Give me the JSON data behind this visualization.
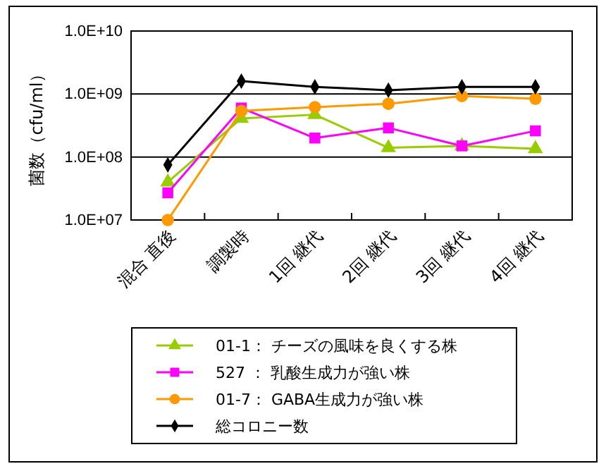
{
  "chart_data": {
    "type": "line",
    "ylabel": "菌数（cfu/ml）",
    "categories": [
      "混合 直後",
      "調製時",
      "1回 継代",
      "2回 継代",
      "3回 継代",
      "4回 継代"
    ],
    "log": "y",
    "ylim": [
      10000000,
      10000000000
    ],
    "yticks": [
      {
        "value": 10000000,
        "label": "1.0E+07"
      },
      {
        "value": 100000000,
        "label": "1.0E+08"
      },
      {
        "value": 1000000000,
        "label": "1.0E+09"
      },
      {
        "value": 10000000000,
        "label": "1.0E+10"
      }
    ],
    "grid": "y",
    "legend": "bottom",
    "series": [
      {
        "name": "01-1：  チーズの風味を良くする株",
        "color": "#99cc00",
        "marker": "triangle",
        "values": [
          40000000,
          410000000,
          470000000,
          140000000,
          150000000,
          135000000
        ]
      },
      {
        "name": "527  ：  乳酸生成力が強い株",
        "color": "#ff00ff",
        "marker": "square",
        "values": [
          27000000,
          600000000,
          200000000,
          290000000,
          150000000,
          260000000
        ]
      },
      {
        "name": "01-7：  GABA生成力が強い株",
        "color": "#ff9900",
        "marker": "circle",
        "values": [
          10000000,
          540000000,
          620000000,
          700000000,
          930000000,
          840000000
        ]
      },
      {
        "name": "総コロニー数",
        "color": "#000000",
        "marker": "diamond",
        "values": [
          75000000,
          1600000000,
          1300000000,
          1150000000,
          1300000000,
          1300000000
        ]
      }
    ]
  }
}
